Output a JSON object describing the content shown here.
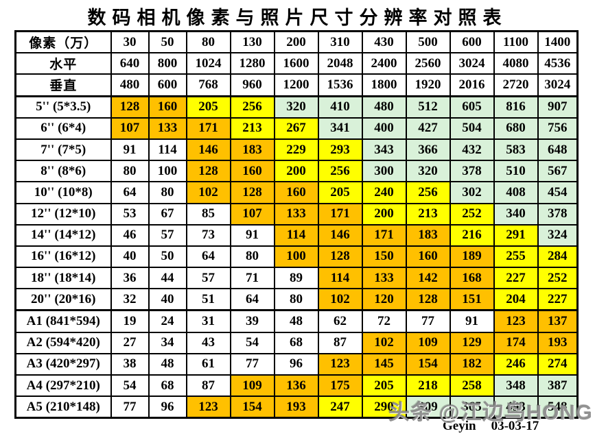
{
  "title": "数码相机像素与照片尺寸分辨率对照表",
  "colors": {
    "w": "#ffffff",
    "o": "#ffc000",
    "y": "#ffff00",
    "g": "#d9f1d9",
    "border": "#000000"
  },
  "footer": {
    "watermark": "头条 @江边鸟HONG",
    "credit": "Geyin",
    "date": "03-03-17"
  },
  "chart_data": {
    "type": "table",
    "title": "数码相机像素与照片尺寸分辨率对照表",
    "corner_label": "像素（万）",
    "megapixel_columns": [
      "30",
      "50",
      "80",
      "130",
      "200",
      "310",
      "430",
      "500",
      "600",
      "1100",
      "1400"
    ],
    "horizontal_pixels": {
      "label": "水平",
      "values": [
        "640",
        "800",
        "1024",
        "1280",
        "1600",
        "2048",
        "2400",
        "2560",
        "3024",
        "4080",
        "4536"
      ]
    },
    "vertical_pixels": {
      "label": "垂直",
      "values": [
        "480",
        "600",
        "768",
        "960",
        "1200",
        "1536",
        "1800",
        "1920",
        "2016",
        "2720",
        "3024"
      ]
    },
    "cell_color_legend": {
      "w": "white (too low dpi)",
      "o": "orange",
      "y": "yellow",
      "g": "pale green"
    },
    "dpi_rows": [
      {
        "label": "5'' (5*3.5)",
        "values": [
          "128",
          "160",
          "205",
          "256",
          "320",
          "410",
          "480",
          "512",
          "605",
          "816",
          "907"
        ],
        "cell_colors": [
          "o",
          "o",
          "y",
          "y",
          "g",
          "g",
          "g",
          "g",
          "g",
          "g",
          "g"
        ]
      },
      {
        "label": "6'' (6*4)",
        "values": [
          "107",
          "133",
          "171",
          "213",
          "267",
          "341",
          "400",
          "427",
          "504",
          "680",
          "756"
        ],
        "cell_colors": [
          "o",
          "o",
          "o",
          "y",
          "y",
          "g",
          "g",
          "g",
          "g",
          "g",
          "g"
        ]
      },
      {
        "label": "7'' (7*5)",
        "values": [
          "91",
          "114",
          "146",
          "183",
          "229",
          "293",
          "343",
          "366",
          "432",
          "583",
          "648"
        ],
        "cell_colors": [
          "w",
          "w",
          "o",
          "o",
          "y",
          "y",
          "g",
          "g",
          "g",
          "g",
          "g"
        ]
      },
      {
        "label": "8'' (8*6)",
        "values": [
          "80",
          "100",
          "128",
          "160",
          "200",
          "256",
          "300",
          "320",
          "378",
          "510",
          "567"
        ],
        "cell_colors": [
          "w",
          "w",
          "o",
          "o",
          "y",
          "y",
          "g",
          "g",
          "g",
          "g",
          "g"
        ]
      },
      {
        "label": "10'' (10*8)",
        "values": [
          "64",
          "80",
          "102",
          "128",
          "160",
          "205",
          "240",
          "256",
          "302",
          "408",
          "454"
        ],
        "cell_colors": [
          "w",
          "w",
          "o",
          "o",
          "o",
          "y",
          "y",
          "y",
          "g",
          "g",
          "g"
        ]
      },
      {
        "label": "12'' (12*10)",
        "values": [
          "53",
          "67",
          "85",
          "107",
          "133",
          "171",
          "200",
          "213",
          "252",
          "340",
          "378"
        ],
        "cell_colors": [
          "w",
          "w",
          "w",
          "o",
          "o",
          "o",
          "y",
          "y",
          "y",
          "g",
          "g"
        ]
      },
      {
        "label": "14'' (14*12)",
        "values": [
          "46",
          "57",
          "73",
          "91",
          "114",
          "146",
          "171",
          "183",
          "216",
          "291",
          "324"
        ],
        "cell_colors": [
          "w",
          "w",
          "w",
          "w",
          "o",
          "o",
          "o",
          "o",
          "y",
          "y",
          "g"
        ]
      },
      {
        "label": "16'' (16*12)",
        "values": [
          "40",
          "50",
          "64",
          "80",
          "100",
          "128",
          "150",
          "160",
          "189",
          "255",
          "284"
        ],
        "cell_colors": [
          "w",
          "w",
          "w",
          "w",
          "o",
          "o",
          "o",
          "o",
          "o",
          "y",
          "y"
        ]
      },
      {
        "label": "18'' (18*14)",
        "values": [
          "36",
          "44",
          "57",
          "71",
          "89",
          "114",
          "133",
          "142",
          "168",
          "227",
          "252"
        ],
        "cell_colors": [
          "w",
          "w",
          "w",
          "w",
          "w",
          "o",
          "o",
          "o",
          "o",
          "y",
          "y"
        ]
      },
      {
        "label": "20'' (20*16)",
        "values": [
          "32",
          "40",
          "51",
          "64",
          "80",
          "102",
          "120",
          "128",
          "151",
          "204",
          "227"
        ],
        "cell_colors": [
          "w",
          "w",
          "w",
          "w",
          "w",
          "o",
          "o",
          "o",
          "o",
          "y",
          "y"
        ]
      },
      {
        "label": "A1 (841*594)",
        "values": [
          "19",
          "24",
          "31",
          "39",
          "48",
          "62",
          "72",
          "77",
          "91",
          "123",
          "137"
        ],
        "cell_colors": [
          "w",
          "w",
          "w",
          "w",
          "w",
          "w",
          "w",
          "w",
          "w",
          "o",
          "o"
        ]
      },
      {
        "label": "A2 (594*420)",
        "values": [
          "27",
          "34",
          "43",
          "54",
          "68",
          "87",
          "102",
          "109",
          "129",
          "174",
          "193"
        ],
        "cell_colors": [
          "w",
          "w",
          "w",
          "w",
          "w",
          "w",
          "o",
          "o",
          "o",
          "o",
          "o"
        ]
      },
      {
        "label": "A3 (420*297)",
        "values": [
          "38",
          "48",
          "61",
          "77",
          "96",
          "123",
          "145",
          "154",
          "182",
          "246",
          "274"
        ],
        "cell_colors": [
          "w",
          "w",
          "w",
          "w",
          "w",
          "o",
          "o",
          "o",
          "o",
          "y",
          "y"
        ]
      },
      {
        "label": "A4 (297*210)",
        "values": [
          "54",
          "68",
          "87",
          "109",
          "136",
          "175",
          "205",
          "218",
          "258",
          "348",
          "387"
        ],
        "cell_colors": [
          "w",
          "w",
          "w",
          "o",
          "o",
          "o",
          "y",
          "y",
          "y",
          "g",
          "g"
        ]
      },
      {
        "label": "A5 (210*148)",
        "values": [
          "77",
          "96",
          "123",
          "154",
          "193",
          "247",
          "290",
          "309",
          "365",
          "493",
          "548"
        ],
        "cell_colors": [
          "w",
          "w",
          "o",
          "o",
          "o",
          "y",
          "y",
          "g",
          "g",
          "g",
          "g"
        ]
      }
    ]
  }
}
